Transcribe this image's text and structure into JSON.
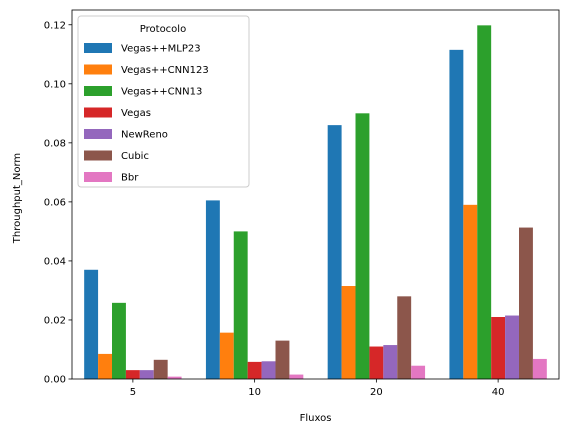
{
  "chart_data": {
    "type": "bar",
    "title": "",
    "xlabel": "Fluxos",
    "ylabel": "Throughput_Norm",
    "categories": [
      "5",
      "10",
      "20",
      "40"
    ],
    "ylim": [
      0,
      0.125
    ],
    "yticks": [
      "0.00",
      "0.02",
      "0.04",
      "0.06",
      "0.08",
      "0.10",
      "0.12"
    ],
    "grid": false,
    "legend": {
      "title": "Protocolo",
      "placement": "top-left"
    },
    "series": [
      {
        "name": "Vegas++MLP23",
        "color": "#1f77b4",
        "values": [
          0.037,
          0.0605,
          0.086,
          0.1115
        ]
      },
      {
        "name": "Vegas++CNN123",
        "color": "#ff7f0e",
        "values": [
          0.0085,
          0.0157,
          0.0315,
          0.059
        ]
      },
      {
        "name": "Vegas++CNN13",
        "color": "#2ca02c",
        "values": [
          0.0258,
          0.05,
          0.09,
          0.1198
        ]
      },
      {
        "name": "Vegas",
        "color": "#d62728",
        "values": [
          0.003,
          0.0058,
          0.011,
          0.021
        ]
      },
      {
        "name": "NewReno",
        "color": "#9467bd",
        "values": [
          0.003,
          0.006,
          0.0115,
          0.0215
        ]
      },
      {
        "name": "Cubic",
        "color": "#8c564b",
        "values": [
          0.0065,
          0.013,
          0.028,
          0.0513
        ]
      },
      {
        "name": "Bbr",
        "color": "#e377c2",
        "values": [
          0.0008,
          0.0015,
          0.0045,
          0.0068
        ]
      }
    ]
  }
}
